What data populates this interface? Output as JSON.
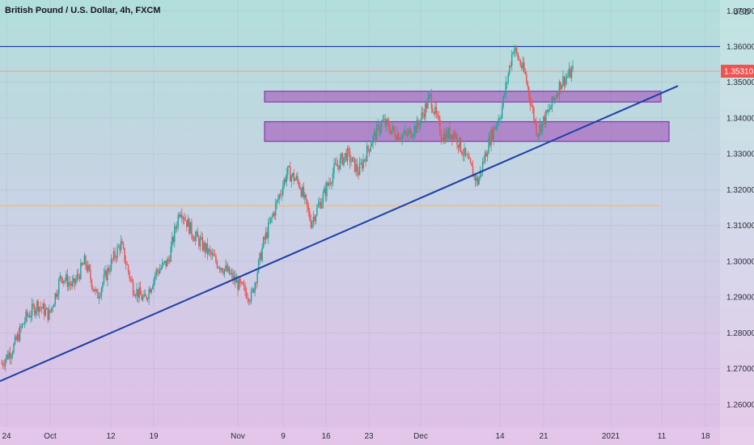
{
  "title": "British Pound / U.S. Dollar, 4h, FXCM",
  "currency": "USD",
  "last_price_label": "1.35310",
  "chart_data": {
    "type": "candlestick",
    "symbol": "GBPUSD",
    "interval": "4h",
    "source": "FXCM",
    "y_axis": {
      "unit": "USD",
      "range": [
        1.255,
        1.373
      ],
      "ticks": [
        "1.26000",
        "1.27000",
        "1.28000",
        "1.29000",
        "1.30000",
        "1.31000",
        "1.32000",
        "1.33000",
        "1.34000",
        "1.35000",
        "1.36000",
        "1.37000"
      ]
    },
    "x_axis": {
      "ticks": [
        "24",
        "Oct",
        "12",
        "19",
        "Nov",
        "9",
        "16",
        "23",
        "Dec",
        "14",
        "21",
        "2021",
        "11",
        "18"
      ]
    },
    "last_price": 1.3531,
    "horizontal_lines": [
      {
        "name": "resistance",
        "price": 1.36,
        "color": "#1e3fa8"
      },
      {
        "name": "last-price",
        "price": 1.3531,
        "color": "#ef9a9a"
      },
      {
        "name": "support",
        "price": 1.3155,
        "color": "#ffb74d"
      }
    ],
    "zones": [
      {
        "name": "upper-zone",
        "from": 1.3445,
        "to": 1.3475,
        "color": "#9c27b0"
      },
      {
        "name": "lower-zone",
        "from": 1.3335,
        "to": 1.339,
        "color": "#9c27b0"
      }
    ],
    "trendline": {
      "name": "rising-trendline",
      "from": 1.2665,
      "to": 1.349,
      "color": "#1e3fa8"
    },
    "series": [
      {
        "name": "close",
        "points": [
          [
            0,
            1.2715
          ],
          [
            1,
            1.276
          ],
          [
            2,
            1.284
          ],
          [
            3,
            1.288
          ],
          [
            4,
            1.285
          ],
          [
            5,
            1.296
          ],
          [
            6,
            1.293
          ],
          [
            7,
            1.3
          ],
          [
            8,
            1.29
          ],
          [
            9,
            1.298
          ],
          [
            10,
            1.305
          ],
          [
            11,
            1.293
          ],
          [
            12,
            1.289
          ],
          [
            13,
            1.297
          ],
          [
            14,
            1.3
          ],
          [
            15,
            1.315
          ],
          [
            16,
            1.308
          ],
          [
            17,
            1.304
          ],
          [
            18,
            1.3
          ],
          [
            19,
            1.297
          ],
          [
            20,
            1.293
          ],
          [
            21,
            1.29
          ],
          [
            22,
            1.305
          ],
          [
            23,
            1.315
          ],
          [
            24,
            1.325
          ],
          [
            25,
            1.322
          ],
          [
            26,
            1.311
          ],
          [
            27,
            1.318
          ],
          [
            28,
            1.326
          ],
          [
            29,
            1.33
          ],
          [
            30,
            1.325
          ],
          [
            31,
            1.333
          ],
          [
            32,
            1.339
          ],
          [
            33,
            1.336
          ],
          [
            34,
            1.335
          ],
          [
            35,
            1.338
          ],
          [
            36,
            1.346
          ],
          [
            37,
            1.335
          ],
          [
            38,
            1.336
          ],
          [
            39,
            1.329
          ],
          [
            40,
            1.322
          ],
          [
            41,
            1.334
          ],
          [
            42,
            1.342
          ],
          [
            43,
            1.36
          ],
          [
            44,
            1.352
          ],
          [
            45,
            1.336
          ],
          [
            46,
            1.342
          ],
          [
            47,
            1.35
          ],
          [
            48,
            1.3531
          ]
        ]
      }
    ]
  }
}
